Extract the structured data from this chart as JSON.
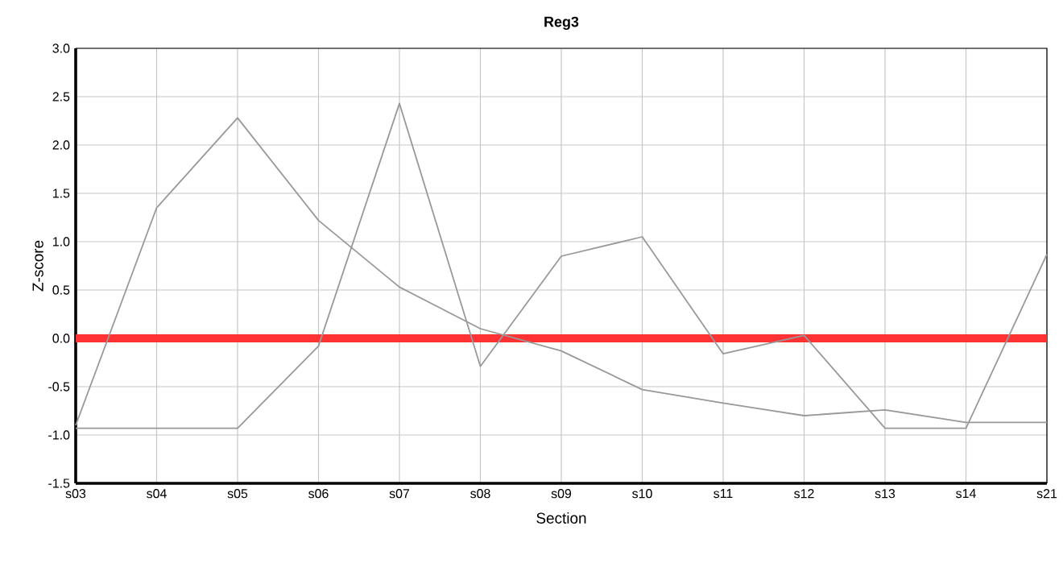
{
  "chart_data": {
    "type": "line",
    "title": "Reg3",
    "xlabel": "Section",
    "ylabel": "Z-score",
    "categories": [
      "s03",
      "s04",
      "s05",
      "s06",
      "s07",
      "s08",
      "s09",
      "s10",
      "s11",
      "s12",
      "s13",
      "s14",
      "s21"
    ],
    "series": [
      {
        "color": "#999999",
        "values": [
          -0.9,
          1.35,
          2.28,
          1.22,
          0.53,
          0.1,
          -0.13,
          -0.53,
          -0.67,
          -0.8,
          -0.74,
          -0.87,
          -0.87
        ]
      },
      {
        "color": "#999999",
        "values": [
          -0.93,
          -0.93,
          -0.93,
          -0.08,
          2.43,
          -0.29,
          0.85,
          1.05,
          -0.16,
          0.03,
          -0.93,
          -0.93,
          0.87
        ]
      }
    ],
    "ylim": [
      -1.5,
      3.0
    ],
    "yticks": [
      {
        "value": -1.5,
        "label": "-1.5"
      },
      {
        "value": -1.0,
        "label": "-1.0"
      },
      {
        "value": -0.5,
        "label": "-0.5"
      },
      {
        "value": 0.0,
        "label": "0.0"
      },
      {
        "value": 0.5,
        "label": "0.5"
      },
      {
        "value": 1.0,
        "label": "1.0"
      },
      {
        "value": 1.5,
        "label": "1.5"
      },
      {
        "value": 2.0,
        "label": "2.0"
      },
      {
        "value": 2.5,
        "label": "2.5"
      },
      {
        "value": 3.0,
        "label": "3.0"
      }
    ],
    "ref_lines": [
      {
        "axis": "y",
        "value": 0,
        "color": "#ff3333"
      }
    ],
    "grid": true,
    "marker": "none",
    "line_style": "solid"
  }
}
